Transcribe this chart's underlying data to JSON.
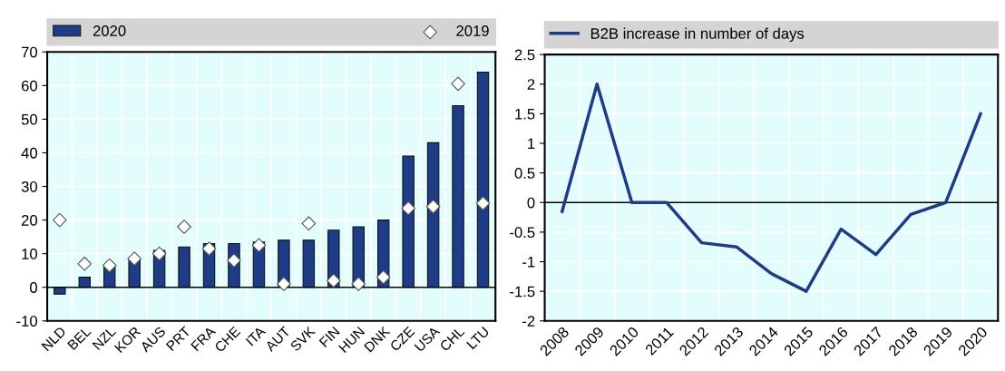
{
  "chart_data": [
    {
      "type": "bar",
      "categories": [
        "NLD",
        "BEL",
        "NZL",
        "KOR",
        "AUS",
        "PRT",
        "FRA",
        "CHE",
        "ITA",
        "AUT",
        "SVK",
        "FIN",
        "HUN",
        "DNK",
        "CZE",
        "USA",
        "CHL",
        "LTU"
      ],
      "series": [
        {
          "name": "2020",
          "type": "bar",
          "color": "#1f3c88",
          "values": [
            -2,
            3,
            6.5,
            8.5,
            11,
            12,
            13,
            13,
            13.5,
            14,
            14,
            17,
            18,
            20,
            39,
            43,
            54,
            64
          ]
        },
        {
          "name": "2019",
          "type": "scatter",
          "marker": "diamond",
          "color": "#ffffff",
          "values": [
            20,
            7,
            6.5,
            8.5,
            10,
            18,
            11.5,
            8,
            12.5,
            1,
            19,
            2,
            1,
            3,
            23.5,
            24,
            60.5,
            25
          ]
        }
      ],
      "ylim": [
        -10,
        70
      ],
      "yticks": [
        -10,
        0,
        10,
        20,
        30,
        40,
        50,
        60,
        70
      ],
      "grid": true,
      "legend": "top",
      "ref_lines": [
        {
          "axis": "y",
          "value": 0,
          "color": "#000000"
        }
      ]
    },
    {
      "type": "line",
      "categories": [
        "2008",
        "2009",
        "2010",
        "2011",
        "2012",
        "2013",
        "2014",
        "2015",
        "2016",
        "2017",
        "2018",
        "2019",
        "2020"
      ],
      "series": [
        {
          "name": "B2B increase in number of days",
          "color": "#1f3c88",
          "values": [
            -0.15,
            2,
            0,
            0,
            -0.68,
            -0.75,
            -1.2,
            -1.5,
            -0.45,
            -0.88,
            -0.2,
            0,
            1.5
          ]
        }
      ],
      "ylim": [
        -2,
        2.5
      ],
      "yticks": [
        -2,
        -1.5,
        -1,
        -0.5,
        0,
        0.5,
        1,
        1.5,
        2,
        2.5
      ],
      "grid": true,
      "legend": "top",
      "ref_lines": [
        {
          "axis": "y",
          "value": 0,
          "color": "#000000"
        }
      ]
    }
  ]
}
